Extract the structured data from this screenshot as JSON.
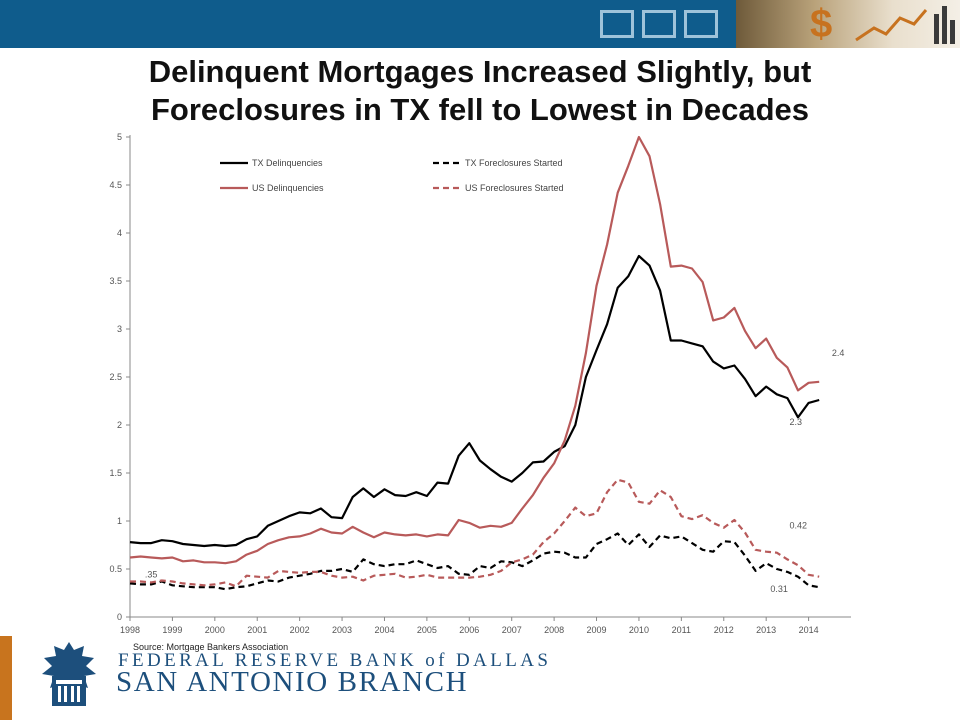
{
  "slide": {
    "title_line1": "Delinquent Mortgages Increased Slightly, but",
    "title_line2": "Foreclosures in TX fell to Lowest in Decades",
    "source": "Source: Mortgage Bankers Association",
    "logo_text_line1": "FEDERAL RESERVE BANK of DALLAS",
    "logo_text_line2": "SAN ANTONIO BRANCH",
    "colors": {
      "header_blue": "#0f5c8c",
      "accent_orange": "#c8741e",
      "bank_blue": "#1d4f7c"
    }
  },
  "chart_data": {
    "type": "line",
    "title": "",
    "xlabel": "",
    "ylabel": "",
    "xlim": [
      1998,
      2015
    ],
    "ylim": [
      0,
      5
    ],
    "y_ticks": [
      "0",
      "0.5",
      "1",
      "1.5",
      "2",
      "2.5",
      "3",
      "3.5",
      "4",
      "4.5",
      "5"
    ],
    "x_ticks": [
      "1998",
      "1999",
      "2000",
      "2001",
      "2002",
      "2003",
      "2004",
      "2005",
      "2006",
      "2007",
      "2008",
      "2009",
      "2010",
      "2011",
      "2012",
      "2013",
      "2014"
    ],
    "grid": false,
    "legend_position": "top-center",
    "series": [
      {
        "name": "TX Delinquencies",
        "color": "#000000",
        "dash": "solid",
        "x": [
          1998.0,
          1998.25,
          1998.5,
          1998.75,
          1999.0,
          1999.25,
          1999.5,
          1999.75,
          2000.0,
          2000.25,
          2000.5,
          2000.75,
          2001.0,
          2001.25,
          2001.5,
          2001.75,
          2002.0,
          2002.25,
          2002.5,
          2002.75,
          2003.0,
          2003.25,
          2003.5,
          2003.75,
          2004.0,
          2004.25,
          2004.5,
          2004.75,
          2005.0,
          2005.25,
          2005.5,
          2005.75,
          2006.0,
          2006.25,
          2006.5,
          2006.75,
          2007.0,
          2007.25,
          2007.5,
          2007.75,
          2008.0,
          2008.25,
          2008.5,
          2008.75,
          2009.0,
          2009.25,
          2009.5,
          2009.75,
          2010.0,
          2010.25,
          2010.5,
          2010.75,
          2011.0,
          2011.25,
          2011.5,
          2011.75,
          2012.0,
          2012.25,
          2012.5,
          2012.75,
          2013.0,
          2013.25,
          2013.5,
          2013.75,
          2014.0,
          2014.25
        ],
        "y": [
          0.78,
          0.77,
          0.77,
          0.8,
          0.79,
          0.76,
          0.75,
          0.74,
          0.75,
          0.74,
          0.75,
          0.81,
          0.84,
          0.95,
          1.0,
          1.05,
          1.09,
          1.08,
          1.13,
          1.04,
          1.03,
          1.25,
          1.34,
          1.25,
          1.33,
          1.27,
          1.26,
          1.3,
          1.26,
          1.4,
          1.39,
          1.68,
          1.81,
          1.63,
          1.54,
          1.46,
          1.41,
          1.5,
          1.61,
          1.62,
          1.72,
          1.78,
          2.0,
          2.5,
          2.78,
          3.05,
          3.43,
          3.55,
          3.76,
          3.66,
          3.4,
          2.88,
          2.88,
          2.85,
          2.82,
          2.66,
          2.59,
          2.62,
          2.48,
          2.3,
          2.4,
          2.32,
          2.28,
          2.08,
          2.23,
          2.26
        ]
      },
      {
        "name": "TX Foreclosures Started",
        "color": "#000000",
        "dash": "dashed",
        "x": [
          1998.0,
          1998.25,
          1998.5,
          1998.75,
          1999.0,
          1999.25,
          1999.5,
          1999.75,
          2000.0,
          2000.25,
          2000.5,
          2000.75,
          2001.0,
          2001.25,
          2001.5,
          2001.75,
          2002.0,
          2002.25,
          2002.5,
          2002.75,
          2003.0,
          2003.25,
          2003.5,
          2003.75,
          2004.0,
          2004.25,
          2004.5,
          2004.75,
          2005.0,
          2005.25,
          2005.5,
          2005.75,
          2006.0,
          2006.25,
          2006.5,
          2006.75,
          2007.0,
          2007.25,
          2007.5,
          2007.75,
          2008.0,
          2008.25,
          2008.5,
          2008.75,
          2009.0,
          2009.25,
          2009.5,
          2009.75,
          2010.0,
          2010.25,
          2010.5,
          2010.75,
          2011.0,
          2011.25,
          2011.5,
          2011.75,
          2012.0,
          2012.25,
          2012.5,
          2012.75,
          2013.0,
          2013.25,
          2013.5,
          2013.75,
          2014.0,
          2014.25
        ],
        "y": [
          0.35,
          0.34,
          0.34,
          0.37,
          0.33,
          0.32,
          0.31,
          0.31,
          0.31,
          0.29,
          0.31,
          0.32,
          0.35,
          0.38,
          0.37,
          0.41,
          0.43,
          0.45,
          0.48,
          0.48,
          0.5,
          0.47,
          0.6,
          0.55,
          0.53,
          0.55,
          0.55,
          0.59,
          0.55,
          0.51,
          0.53,
          0.45,
          0.44,
          0.53,
          0.51,
          0.58,
          0.57,
          0.53,
          0.59,
          0.66,
          0.68,
          0.67,
          0.62,
          0.62,
          0.76,
          0.81,
          0.87,
          0.75,
          0.86,
          0.73,
          0.85,
          0.82,
          0.84,
          0.77,
          0.7,
          0.68,
          0.79,
          0.78,
          0.64,
          0.48,
          0.56,
          0.5,
          0.47,
          0.42,
          0.33,
          0.31
        ]
      },
      {
        "name": "US Delinquencies",
        "color": "#b85a5a",
        "dash": "solid",
        "x": [
          1998.0,
          1998.25,
          1998.5,
          1998.75,
          1999.0,
          1999.25,
          1999.5,
          1999.75,
          2000.0,
          2000.25,
          2000.5,
          2000.75,
          2001.0,
          2001.25,
          2001.5,
          2001.75,
          2002.0,
          2002.25,
          2002.5,
          2002.75,
          2003.0,
          2003.25,
          2003.5,
          2003.75,
          2004.0,
          2004.25,
          2004.5,
          2004.75,
          2005.0,
          2005.25,
          2005.5,
          2005.75,
          2006.0,
          2006.25,
          2006.5,
          2006.75,
          2007.0,
          2007.25,
          2007.5,
          2007.75,
          2008.0,
          2008.25,
          2008.5,
          2008.75,
          2009.0,
          2009.25,
          2009.5,
          2009.75,
          2010.0,
          2010.25,
          2010.5,
          2010.75,
          2011.0,
          2011.25,
          2011.5,
          2011.75,
          2012.0,
          2012.25,
          2012.5,
          2012.75,
          2013.0,
          2013.25,
          2013.5,
          2013.75,
          2014.0,
          2014.25
        ],
        "y": [
          0.62,
          0.63,
          0.62,
          0.61,
          0.62,
          0.58,
          0.59,
          0.57,
          0.57,
          0.56,
          0.58,
          0.65,
          0.69,
          0.76,
          0.8,
          0.83,
          0.84,
          0.87,
          0.92,
          0.88,
          0.87,
          0.94,
          0.88,
          0.83,
          0.88,
          0.86,
          0.85,
          0.86,
          0.84,
          0.86,
          0.85,
          1.01,
          0.98,
          0.93,
          0.95,
          0.94,
          0.98,
          1.13,
          1.27,
          1.45,
          1.6,
          1.84,
          2.2,
          2.75,
          3.45,
          3.88,
          4.42,
          4.7,
          5.0,
          4.8,
          4.3,
          3.65,
          3.66,
          3.63,
          3.49,
          3.09,
          3.12,
          3.22,
          2.98,
          2.8,
          2.9,
          2.7,
          2.6,
          2.36,
          2.44,
          2.45
        ]
      },
      {
        "name": "US Foreclosures Started",
        "color": "#b85a5a",
        "dash": "dashed",
        "x": [
          1998.0,
          1998.25,
          1998.5,
          1998.75,
          1999.0,
          1999.25,
          1999.5,
          1999.75,
          2000.0,
          2000.25,
          2000.5,
          2000.75,
          2001.0,
          2001.25,
          2001.5,
          2001.75,
          2002.0,
          2002.25,
          2002.5,
          2002.75,
          2003.0,
          2003.25,
          2003.5,
          2003.75,
          2004.0,
          2004.25,
          2004.5,
          2004.75,
          2005.0,
          2005.25,
          2005.5,
          2005.75,
          2006.0,
          2006.25,
          2006.5,
          2006.75,
          2007.0,
          2007.25,
          2007.5,
          2007.75,
          2008.0,
          2008.25,
          2008.5,
          2008.75,
          2009.0,
          2009.25,
          2009.5,
          2009.75,
          2010.0,
          2010.25,
          2010.5,
          2010.75,
          2011.0,
          2011.25,
          2011.5,
          2011.75,
          2012.0,
          2012.25,
          2012.5,
          2012.75,
          2013.0,
          2013.25,
          2013.5,
          2013.75,
          2014.0,
          2014.25
        ],
        "y": [
          0.37,
          0.37,
          0.36,
          0.38,
          0.37,
          0.35,
          0.34,
          0.33,
          0.34,
          0.36,
          0.32,
          0.43,
          0.42,
          0.41,
          0.48,
          0.47,
          0.46,
          0.47,
          0.47,
          0.43,
          0.41,
          0.42,
          0.38,
          0.43,
          0.44,
          0.45,
          0.41,
          0.42,
          0.44,
          0.41,
          0.41,
          0.41,
          0.41,
          0.42,
          0.44,
          0.48,
          0.57,
          0.6,
          0.65,
          0.78,
          0.87,
          1.0,
          1.14,
          1.05,
          1.08,
          1.3,
          1.43,
          1.4,
          1.2,
          1.18,
          1.32,
          1.25,
          1.05,
          1.02,
          1.06,
          0.98,
          0.93,
          1.01,
          0.88,
          0.7,
          0.68,
          0.67,
          0.6,
          0.54,
          0.44,
          0.42
        ]
      }
    ],
    "annotations": [
      {
        "text": "2.4",
        "x": 2014.55,
        "y": 2.72,
        "color": "#555555"
      },
      {
        "text": "2.3",
        "x": 2013.55,
        "y": 2.0,
        "color": "#555555"
      },
      {
        "text": "0.42",
        "x": 2013.55,
        "y": 0.92,
        "color": "#555555"
      },
      {
        "text": "0.31",
        "x": 2013.1,
        "y": 0.26,
        "color": "#555555"
      },
      {
        "text": ".35",
        "x": 1998.35,
        "y": 0.41,
        "color": "#555555"
      }
    ]
  }
}
